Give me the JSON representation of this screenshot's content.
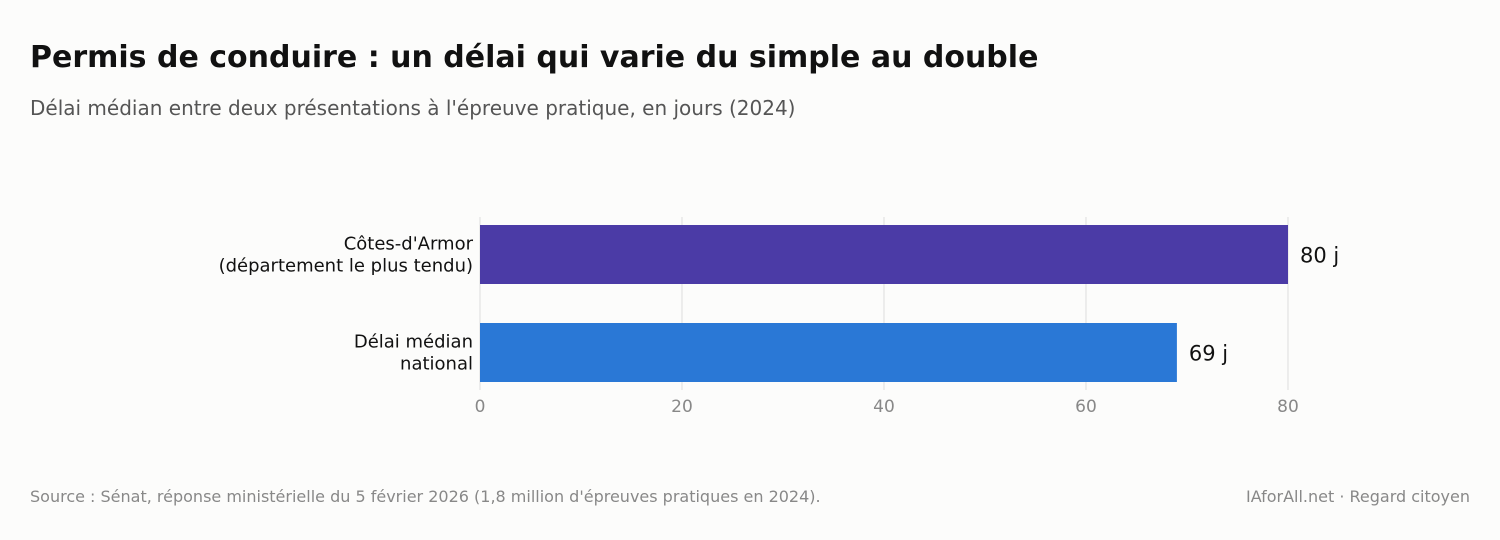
{
  "header": {
    "title": "Permis de conduire : un délai qui varie du simple au double",
    "subtitle": "Délai médian entre deux présentations à l'épreuve pratique, en jours (2024)"
  },
  "chart_data": {
    "type": "bar",
    "orientation": "horizontal",
    "categories": [
      [
        "Côtes-d'Armor",
        "(département le plus tendu)"
      ],
      [
        "Délai médian",
        "national"
      ]
    ],
    "values": [
      80,
      69
    ],
    "value_labels": [
      "80 j",
      "69 j"
    ],
    "colors": [
      "#4b3ba6",
      "#2a78d6"
    ],
    "xticks": [
      0,
      20,
      40,
      60,
      80
    ],
    "xlim": [
      0,
      80
    ],
    "grid": "vertical"
  },
  "footer": {
    "source": "Source : Sénat, réponse ministérielle du 5 février 2026 (1,8 million d'épreuves pratiques en 2024).",
    "credit": "IAforAll.net · Regard citoyen"
  }
}
